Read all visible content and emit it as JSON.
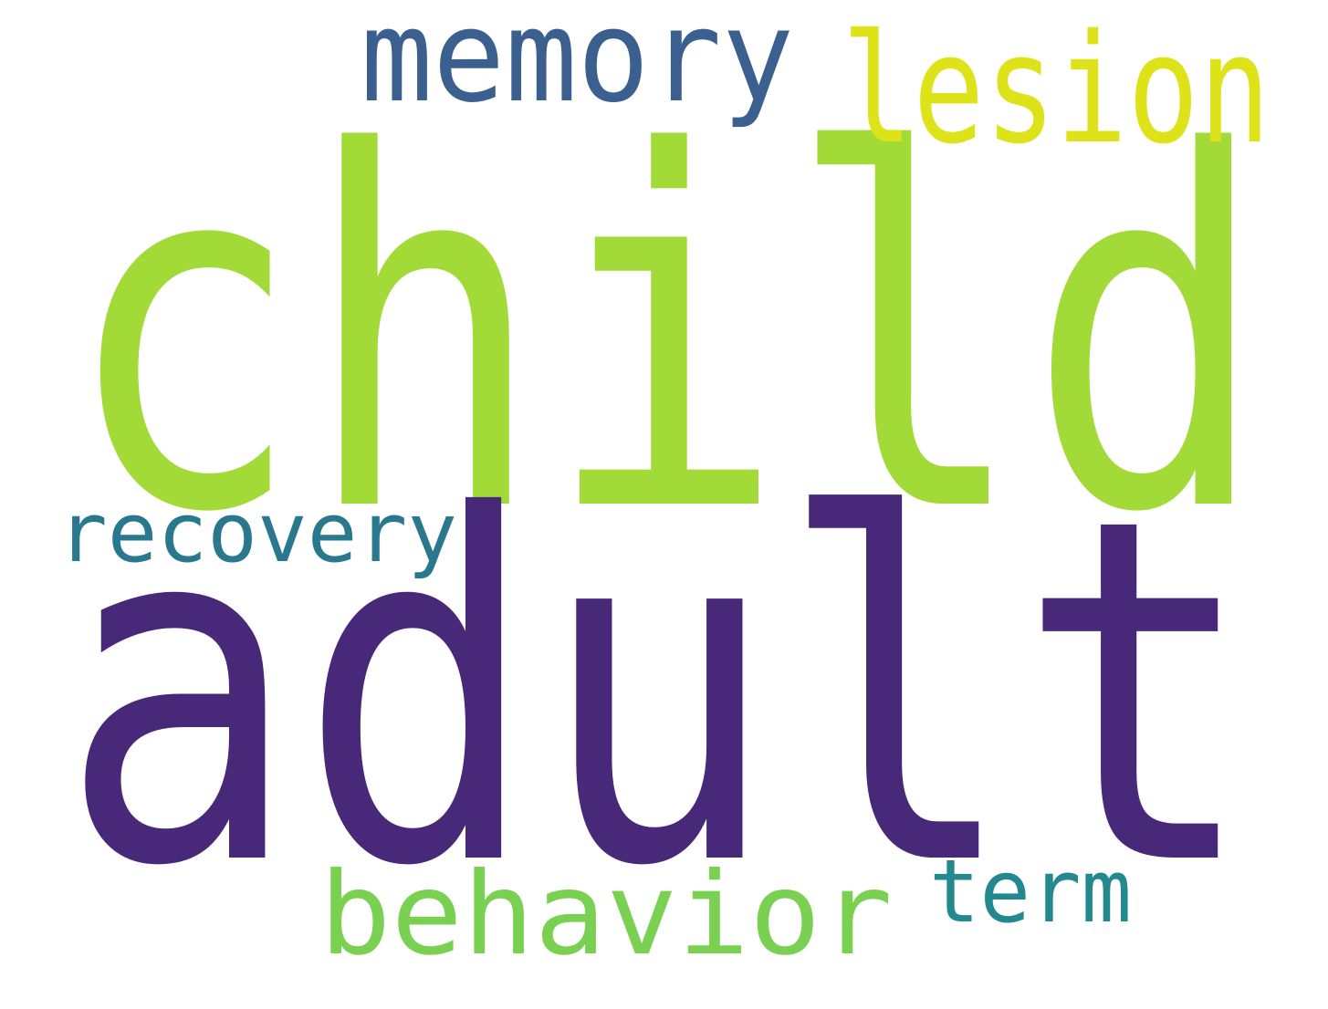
{
  "word_cloud": {
    "background_color": "#ffffff",
    "words": [
      {
        "id": "child",
        "text": "child",
        "color": "#a2da37"
      },
      {
        "id": "adult",
        "text": "adult",
        "color": "#482979"
      },
      {
        "id": "memory",
        "text": "memory",
        "color": "#3b5f8f"
      },
      {
        "id": "lesion",
        "text": "lesion",
        "color": "#dde318"
      },
      {
        "id": "recovery",
        "text": "recovery",
        "color": "#2a788e"
      },
      {
        "id": "behavior",
        "text": "behavior",
        "color": "#7ad151"
      },
      {
        "id": "term",
        "text": "term",
        "color": "#23898e"
      }
    ]
  }
}
